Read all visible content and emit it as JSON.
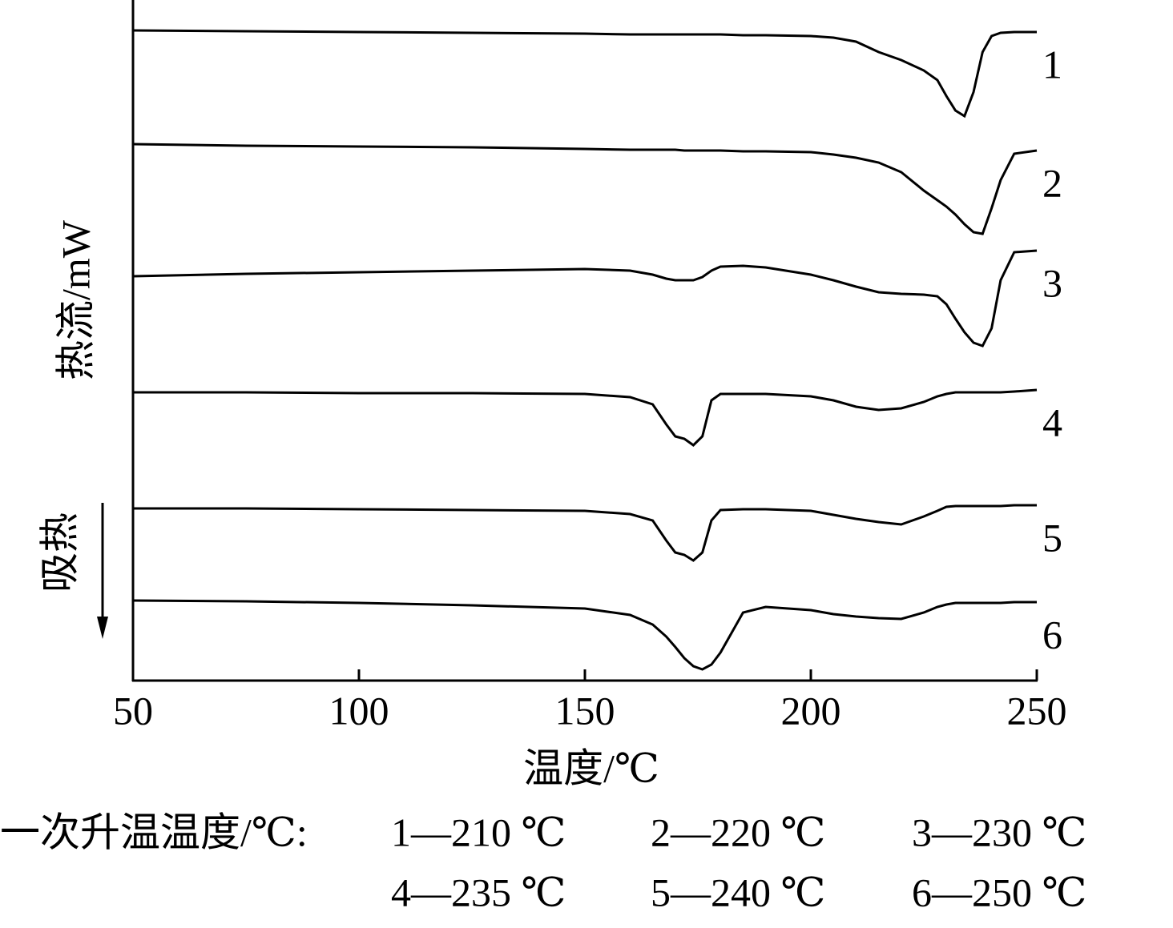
{
  "chart_data": {
    "type": "line",
    "x_label": "温度/℃",
    "y_label": "热流/mW",
    "direction_label": "吸热",
    "legend_title": "一次升温温度/℃:",
    "legend_entries": [
      "1—210 ℃",
      "2—220 ℃",
      "3—230 ℃",
      "4—235 ℃",
      "5—240 ℃",
      "6—250 ℃"
    ],
    "x": [
      50,
      75,
      100,
      125,
      150,
      160,
      165,
      168,
      170,
      172,
      174,
      176,
      178,
      180,
      185,
      190,
      200,
      205,
      210,
      215,
      220,
      225,
      228,
      230,
      232,
      234,
      236,
      238,
      240,
      242,
      245,
      250
    ],
    "xlim": [
      50,
      250
    ],
    "xticks": [
      50,
      100,
      150,
      200,
      250
    ],
    "ylim": [
      0,
      850
    ],
    "series": [
      {
        "name": "1",
        "color": "#000000",
        "values": [
          812,
          811,
          810,
          809,
          808,
          807,
          807,
          807,
          807,
          807,
          807,
          807,
          807,
          807,
          806,
          806,
          805,
          803,
          798,
          785,
          775,
          762,
          750,
          730,
          712,
          705,
          735,
          785,
          805,
          809,
          810,
          810
        ]
      },
      {
        "name": "2",
        "color": "#000000",
        "values": [
          670,
          668,
          667,
          666,
          664,
          663,
          663,
          663,
          663,
          662,
          662,
          662,
          662,
          662,
          661,
          661,
          660,
          657,
          653,
          647,
          635,
          612,
          600,
          592,
          582,
          570,
          560,
          558,
          590,
          625,
          658,
          662
        ]
      },
      {
        "name": "3",
        "color": "#000000",
        "values": [
          505,
          508,
          510,
          512,
          514,
          512,
          507,
          502,
          500,
          500,
          500,
          504,
          512,
          517,
          518,
          516,
          507,
          500,
          492,
          485,
          483,
          482,
          480,
          470,
          452,
          435,
          422,
          418,
          440,
          500,
          535,
          537
        ]
      },
      {
        "name": "4",
        "color": "#000000",
        "values": [
          360,
          360,
          359,
          359,
          358,
          354,
          345,
          320,
          305,
          302,
          294,
          305,
          350,
          358,
          358,
          358,
          355,
          350,
          342,
          338,
          340,
          348,
          355,
          358,
          360,
          360,
          360,
          360,
          360,
          360,
          361,
          363
        ]
      },
      {
        "name": "5",
        "color": "#000000",
        "values": [
          215,
          215,
          214,
          213,
          212,
          208,
          200,
          175,
          160,
          157,
          150,
          160,
          200,
          213,
          214,
          214,
          212,
          207,
          202,
          198,
          195,
          205,
          212,
          217,
          218,
          218,
          218,
          218,
          218,
          218,
          219,
          219
        ]
      },
      {
        "name": "6",
        "color": "#000000",
        "values": [
          100,
          99,
          97,
          94,
          90,
          82,
          70,
          55,
          42,
          28,
          18,
          14,
          20,
          35,
          85,
          92,
          88,
          83,
          80,
          78,
          77,
          85,
          92,
          95,
          97,
          97,
          97,
          97,
          97,
          97,
          98,
          98
        ]
      }
    ]
  }
}
